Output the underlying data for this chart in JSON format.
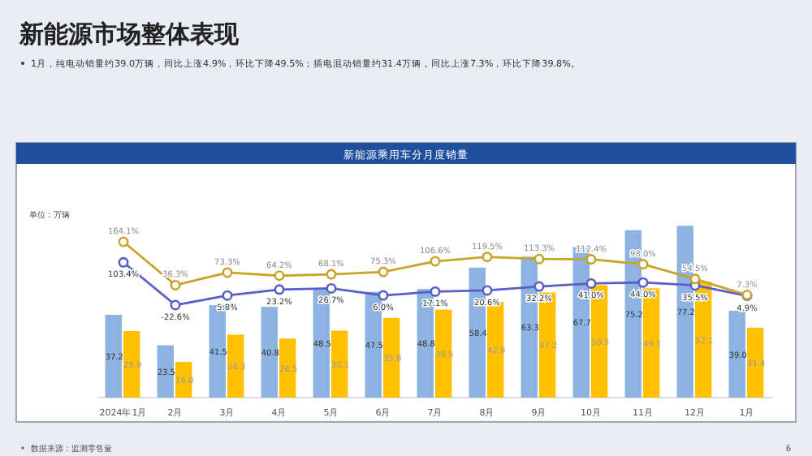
{
  "chart_data": {
    "type": "bar",
    "title": "新能源市场整体表现",
    "subtitle": "1月，纯电动销量约39.0万辆，同比上涨4.9%，环比下降49.5%；插电混动销量约31.4万辆，同比上涨7.3%，环比下降39.8%。",
    "ylabel": "单位：万辆",
    "annotations": [
      "新能源乘用车分月度销量",
      "数据来源：监测零售量",
      "6"
    ],
    "categories": [
      "2024年1月",
      "2月",
      "3月",
      "4月",
      "5月",
      "6月",
      "7月",
      "8月",
      "9月",
      "10月",
      "11月",
      "12月",
      "1月"
    ],
    "series": [
      {
        "color": "#8db3e2",
        "values": [
          37.2,
          23.5,
          41.5,
          40.8,
          48.5,
          47.5,
          48.8,
          58.4,
          63.3,
          67.7,
          75.2,
          77.2,
          39.0
        ],
        "value_labels": [
          "37.2",
          "23.5",
          "41.5",
          "40.8",
          "48.5",
          "47.5",
          "48.8",
          "58.4",
          "63.3",
          "67.7",
          "75.2",
          "77.2",
          "39.0"
        ]
      },
      {
        "color": "#ffc000",
        "values": [
          29.9,
          16.0,
          28.3,
          26.5,
          30.1,
          35.8,
          39.5,
          42.9,
          47.2,
          50.5,
          49.1,
          52.1,
          31.4
        ],
        "value_labels": [
          "29.9",
          "16.0",
          "28.3",
          "26.5",
          "30.1",
          "35.8",
          "39.5",
          "42.9",
          "47.2",
          "50.5",
          "49.1",
          "52.1",
          "31.4"
        ]
      },
      {
        "type": "line",
        "axis": "y2",
        "color": "#5a5fc8",
        "values": [
          103.4,
          -22.6,
          5.8,
          23.2,
          26.7,
          6.0,
          17.1,
          20.6,
          32.2,
          41.0,
          44.0,
          35.5,
          4.9
        ],
        "value_labels": [
          "103.4%",
          "-22.6%",
          "5.8%",
          "23.2%",
          "26.7%",
          "6.0%",
          "17.1%",
          "20.6%",
          "32.2%",
          "41.0%",
          "44.0%",
          "35.5%",
          "4.9%"
        ]
      },
      {
        "type": "line",
        "axis": "y2",
        "color": "#c8a42a",
        "values": [
          164.1,
          36.3,
          73.3,
          64.2,
          68.1,
          75.3,
          106.6,
          119.5,
          113.3,
          112.4,
          98.0,
          54.5,
          7.3
        ],
        "value_labels": [
          "164.1%",
          "36.3%",
          "73.3%",
          "64.2%",
          "68.1%",
          "75.3%",
          "106.6%",
          "119.5%",
          "113.3%",
          "112.4%",
          "98.0%",
          "54.5%",
          "7.3%"
        ]
      }
    ],
    "marker": "circle"
  }
}
